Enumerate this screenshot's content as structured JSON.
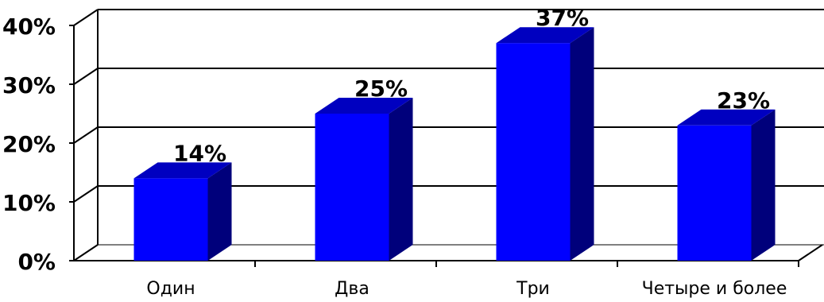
{
  "chart_data": {
    "type": "bar",
    "categories": [
      "Один",
      "Два",
      "Три",
      "Четыре и более"
    ],
    "values": [
      14,
      25,
      37,
      23
    ],
    "data_labels": [
      "14%",
      "25%",
      "37%",
      "23%"
    ],
    "ylim": [
      0,
      40
    ],
    "yticks": [
      0,
      10,
      20,
      30,
      40
    ],
    "ytick_labels": [
      "0%",
      "10%",
      "20%",
      "30%",
      "40%"
    ],
    "grid": true,
    "three_d": true,
    "colors": {
      "bar_front": "#0000ff",
      "bar_side": "#00007b",
      "bar_top": "#0000c0",
      "lines": "#000000"
    }
  }
}
